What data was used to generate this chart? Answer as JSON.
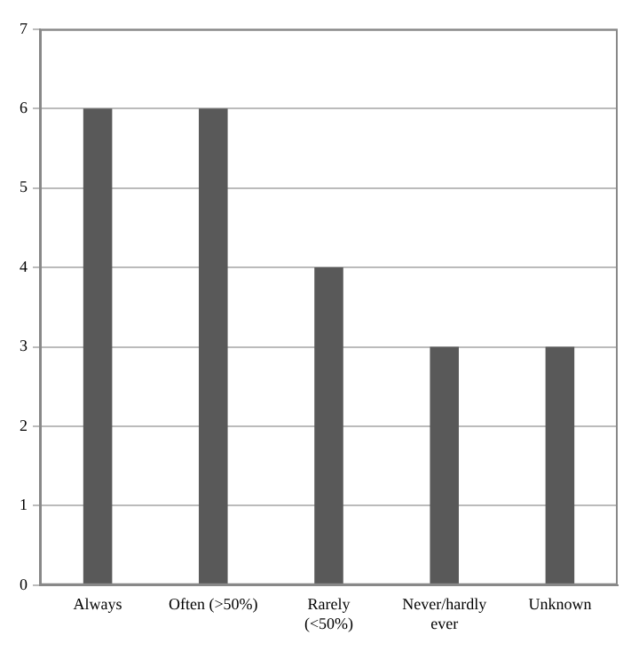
{
  "chart_data": {
    "type": "bar",
    "categories": [
      "Always",
      "Often (>50%)",
      "Rarely (<50%)",
      "Never/hardly ever",
      "Unknown"
    ],
    "values": [
      6,
      6,
      4,
      3,
      3
    ],
    "color": "#595959",
    "ylim": [
      0,
      7
    ],
    "yticks": [
      0,
      1,
      2,
      3,
      4,
      5,
      6,
      7
    ],
    "grid": "y"
  }
}
